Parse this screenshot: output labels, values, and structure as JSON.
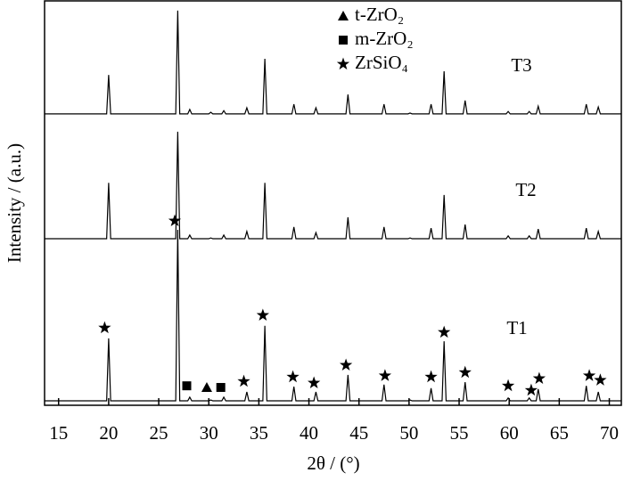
{
  "chart_data": {
    "type": "line",
    "x_label": "2θ / (°)",
    "y_label": "Intensity / (a.u.)",
    "xlim": [
      13.6,
      71.2
    ],
    "ylim": [
      0,
      100
    ],
    "xticks": [
      15,
      20,
      25,
      30,
      35,
      40,
      45,
      50,
      55,
      60,
      65,
      70
    ],
    "x": [
      13.6,
      19.8,
      20.0,
      20.2,
      26.7,
      26.9,
      27.1,
      27.9,
      28.1,
      28.3,
      30.0,
      30.2,
      30.4,
      31.3,
      31.5,
      31.7,
      33.6,
      33.8,
      34.0,
      35.4,
      35.6,
      35.8,
      38.3,
      38.5,
      38.7,
      40.5,
      40.7,
      40.9,
      43.7,
      43.9,
      44.1,
      47.3,
      47.5,
      47.7,
      49.9,
      50.1,
      50.3,
      52.0,
      52.2,
      52.4,
      53.3,
      53.5,
      53.7,
      55.4,
      55.6,
      55.8,
      59.7,
      59.9,
      60.1,
      61.8,
      62.0,
      62.2,
      62.7,
      62.9,
      63.1,
      67.5,
      67.7,
      67.9,
      68.7,
      68.9,
      69.1,
      71.2
    ],
    "series": [
      {
        "name": "T1",
        "color": "#000000",
        "values": [
          1.1,
          1.1,
          16.5,
          1.1,
          1.1,
          43.3,
          1.1,
          1.1,
          2.0,
          1.1,
          1.1,
          1.3,
          1.1,
          1.1,
          2.0,
          1.1,
          1.1,
          3.3,
          1.1,
          1.1,
          19.6,
          1.1,
          1.1,
          4.6,
          1.1,
          1.1,
          3.3,
          1.1,
          1.1,
          7.5,
          1.1,
          1.1,
          5.1,
          1.1,
          1.1,
          1.3,
          1.1,
          1.1,
          4.2,
          1.1,
          1.1,
          15.8,
          1.1,
          1.1,
          5.7,
          1.1,
          1.1,
          1.8,
          1.1,
          1.1,
          1.8,
          1.1,
          1.1,
          4.0,
          1.1,
          1.1,
          4.8,
          1.1,
          1.1,
          3.3,
          1.1,
          1.1
        ]
      },
      {
        "name": "T2",
        "color": "#000000",
        "values": [
          41.1,
          41.1,
          54.9,
          41.1,
          41.1,
          67.5,
          41.1,
          41.1,
          42.0,
          41.1,
          41.1,
          41.3,
          41.1,
          41.1,
          42.0,
          41.1,
          41.1,
          42.9,
          41.1,
          41.1,
          54.9,
          41.1,
          41.1,
          44.0,
          41.1,
          41.1,
          42.6,
          41.1,
          41.1,
          46.4,
          41.1,
          41.1,
          44.0,
          41.1,
          41.1,
          41.3,
          41.1,
          41.1,
          43.7,
          41.1,
          41.1,
          51.9,
          41.1,
          41.1,
          44.6,
          41.1,
          41.1,
          41.8,
          41.1,
          41.1,
          41.8,
          41.1,
          41.1,
          43.5,
          41.1,
          41.1,
          43.7,
          41.1,
          41.1,
          42.9,
          41.1,
          41.1
        ]
      },
      {
        "name": "T3",
        "color": "#000000",
        "values": [
          71.9,
          71.9,
          81.5,
          71.9,
          71.9,
          97.4,
          71.9,
          71.9,
          73.0,
          71.9,
          71.9,
          72.3,
          71.9,
          71.9,
          72.7,
          71.9,
          71.9,
          73.4,
          71.9,
          71.9,
          85.5,
          71.9,
          71.9,
          74.3,
          71.9,
          71.9,
          73.4,
          71.9,
          71.9,
          76.7,
          71.9,
          71.9,
          74.3,
          71.9,
          71.9,
          72.1,
          71.9,
          71.9,
          74.3,
          71.9,
          71.9,
          82.4,
          71.9,
          71.9,
          75.2,
          71.9,
          71.9,
          72.5,
          71.9,
          71.9,
          72.5,
          71.9,
          71.9,
          73.8,
          71.9,
          71.9,
          74.3,
          71.9,
          71.9,
          73.6,
          71.9,
          71.9
        ]
      }
    ],
    "phases": [
      {
        "name": "t-ZrO₂",
        "symbol": "triangle",
        "markers": {
          "x": [
            29.8
          ],
          "y": [
            4.4
          ]
        }
      },
      {
        "name": "m-ZrO₂",
        "symbol": "square",
        "markers": {
          "x": [
            27.8,
            31.2
          ],
          "y": [
            4.8,
            4.4
          ]
        }
      },
      {
        "name": "ZrSiO₄",
        "symbol": "star",
        "markers": {
          "x": [
            19.6,
            26.6,
            33.5,
            35.4,
            38.4,
            40.5,
            43.7,
            47.6,
            52.2,
            53.5,
            55.6,
            59.9,
            62.2,
            63.0,
            68.0,
            69.1
          ],
          "y": [
            19.1,
            45.5,
            5.9,
            22.2,
            7.0,
            5.5,
            9.9,
            7.3,
            7.0,
            18.0,
            8.1,
            4.8,
            3.7,
            6.6,
            7.3,
            6.2
          ]
        }
      }
    ]
  }
}
